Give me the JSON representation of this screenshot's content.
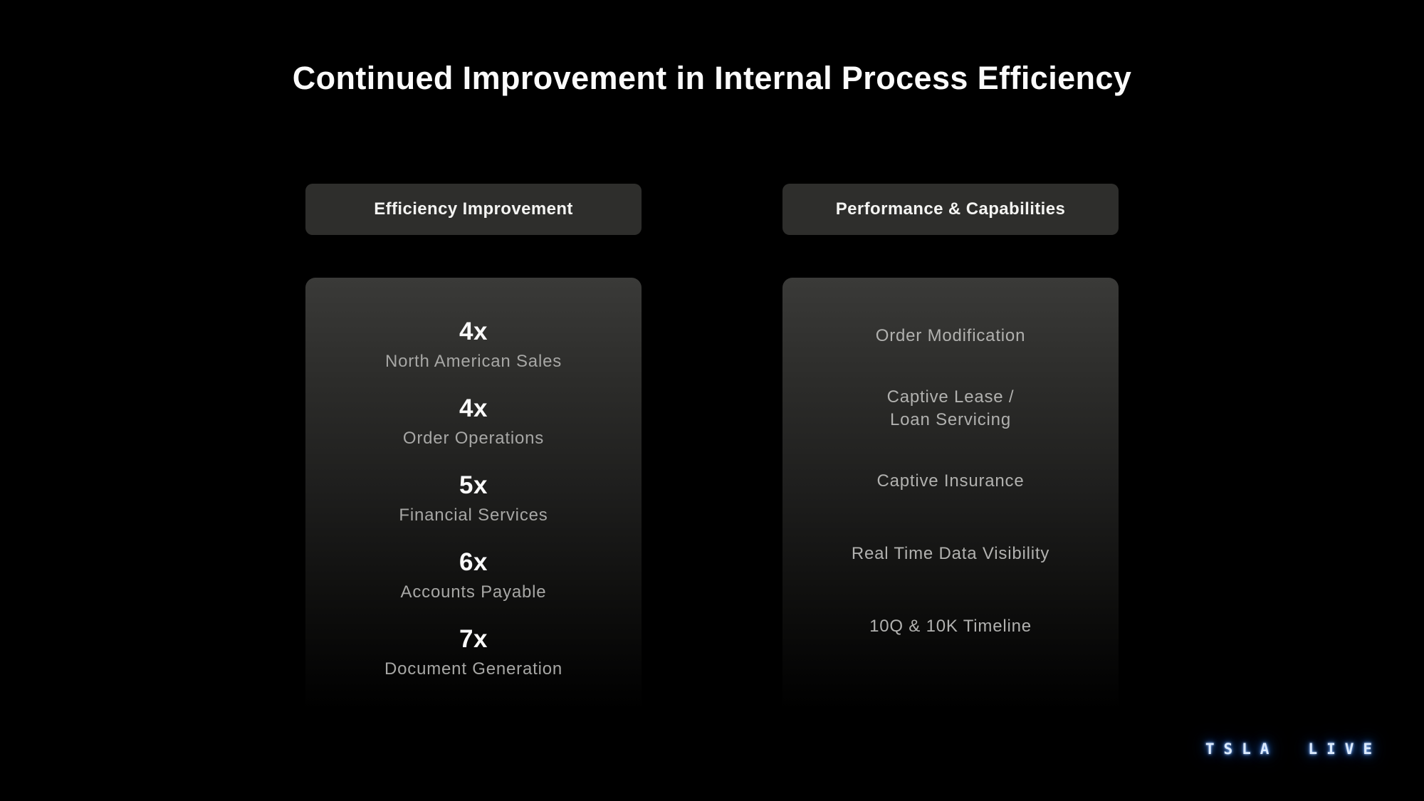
{
  "slide": {
    "title": "Continued Improvement in Internal Process Efficiency",
    "background_color": "#000000",
    "title_color": "#fbfbfb",
    "pill_background_color": "#2e2e2c",
    "panel_top_color": "#3a3a38",
    "value_text_color": "#fafafa",
    "label_text_color": "#a7a7a5"
  },
  "left_column": {
    "header": "Efficiency Improvement",
    "items": [
      {
        "value": "4x",
        "label": "North American Sales"
      },
      {
        "value": "4x",
        "label": "Order Operations"
      },
      {
        "value": "5x",
        "label": "Financial Services"
      },
      {
        "value": "6x",
        "label": "Accounts Payable"
      },
      {
        "value": "7x",
        "label": "Document Generation"
      }
    ]
  },
  "right_column": {
    "header": "Performance & Capabilities",
    "items": [
      {
        "label": "Order Modification"
      },
      {
        "label": "Captive Lease /\nLoan Servicing"
      },
      {
        "label": "Captive Insurance"
      },
      {
        "label": "Real Time Data Visibility"
      },
      {
        "label": "10Q & 10K Timeline"
      }
    ]
  },
  "watermark": {
    "brand": "TSLA",
    "suffix": "LIVE",
    "glow_color": "#3f84e6"
  }
}
